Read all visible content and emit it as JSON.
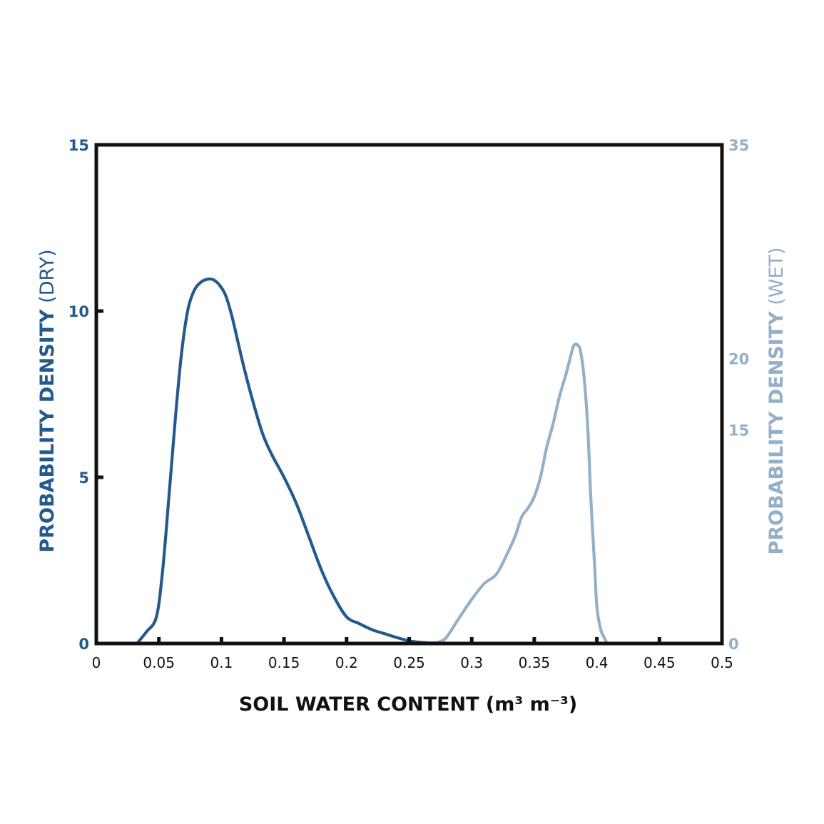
{
  "chart_data": {
    "type": "line",
    "xlabel": "SOIL WATER CONTENT (m³ m⁻³)",
    "ylabel_left": {
      "main": "PROBABILITY DENSITY",
      "suffix": " (DRY)"
    },
    "ylabel_right": {
      "main": "PROBABILITY DENSITY",
      "suffix": " (WET)"
    },
    "xlim": [
      0,
      0.5
    ],
    "ylim_left": [
      0,
      15
    ],
    "ylim_right": [
      0,
      35
    ],
    "x_ticks": [
      0,
      0.05,
      0.1,
      0.15,
      0.2,
      0.25,
      0.3,
      0.35,
      0.4,
      0.45,
      0.5
    ],
    "x_tick_labels": [
      "0",
      "0.05",
      "0.1",
      "0.15",
      "0.2",
      "0.25",
      "0.3",
      "0.35",
      "0.4",
      "0.45",
      "0.5"
    ],
    "y_left_ticks": [
      0,
      5,
      10,
      15
    ],
    "y_left_tick_labels": [
      "0",
      "5",
      "10",
      "15"
    ],
    "y_right_ticks": [
      0,
      15,
      20,
      35
    ],
    "y_right_tick_labels": [
      "0",
      "15",
      "20",
      "35"
    ],
    "grid": false,
    "colors": {
      "dry": "#24598e",
      "wet": "#93b0c8",
      "frame": "#111111"
    },
    "series": [
      {
        "axis": "left",
        "color": "#24598e",
        "x": [
          0.033,
          0.04,
          0.048,
          0.053,
          0.058,
          0.063,
          0.068,
          0.073,
          0.078,
          0.083,
          0.088,
          0.093,
          0.098,
          0.103,
          0.108,
          0.113,
          0.118,
          0.125,
          0.133,
          0.14,
          0.15,
          0.16,
          0.17,
          0.18,
          0.19,
          0.2,
          0.21,
          0.22,
          0.23,
          0.24,
          0.25,
          0.26,
          0.27
        ],
        "y": [
          0.0,
          0.35,
          0.8,
          2.2,
          4.4,
          6.7,
          8.7,
          10.0,
          10.6,
          10.85,
          10.95,
          10.95,
          10.8,
          10.5,
          9.9,
          9.1,
          8.3,
          7.3,
          6.3,
          5.7,
          5.0,
          4.2,
          3.2,
          2.2,
          1.4,
          0.8,
          0.6,
          0.42,
          0.3,
          0.18,
          0.08,
          0.03,
          0.0
        ]
      },
      {
        "axis": "right",
        "color": "#93b0c8",
        "x": [
          0.265,
          0.27,
          0.275,
          0.28,
          0.29,
          0.3,
          0.31,
          0.32,
          0.33,
          0.335,
          0.34,
          0.345,
          0.35,
          0.355,
          0.36,
          0.365,
          0.37,
          0.375,
          0.378,
          0.381,
          0.383,
          0.385,
          0.387,
          0.39,
          0.393,
          0.395,
          0.398,
          0.4,
          0.403,
          0.406,
          0.408
        ],
        "y": [
          0.0,
          0.05,
          0.15,
          0.45,
          1.8,
          3.1,
          4.2,
          4.9,
          6.6,
          7.6,
          8.9,
          9.5,
          10.3,
          11.7,
          13.8,
          15.4,
          17.3,
          18.8,
          19.8,
          20.8,
          21.0,
          20.9,
          20.5,
          18.5,
          14.7,
          10.5,
          5.8,
          2.6,
          1.0,
          0.4,
          0.0
        ]
      }
    ]
  }
}
